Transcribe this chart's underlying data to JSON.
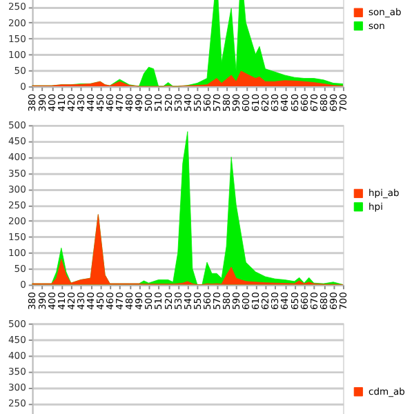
{
  "chart_data": [
    {
      "type": "area",
      "x": [
        380,
        390,
        400,
        410,
        420,
        430,
        440,
        450,
        455,
        460,
        470,
        480,
        490,
        495,
        500,
        505,
        510,
        515,
        520,
        525,
        530,
        540,
        550,
        560,
        570,
        575,
        585,
        590,
        595,
        600,
        610,
        614,
        620,
        630,
        640,
        650,
        660,
        670,
        680,
        690,
        700
      ],
      "xlim": [
        380,
        700
      ],
      "xticks": [
        380,
        390,
        400,
        410,
        420,
        430,
        440,
        450,
        460,
        470,
        480,
        490,
        500,
        510,
        520,
        530,
        540,
        550,
        560,
        570,
        580,
        590,
        600,
        610,
        620,
        630,
        640,
        650,
        660,
        670,
        680,
        690,
        700
      ],
      "ylim": [
        0,
        500
      ],
      "yticks": [
        0,
        50,
        100,
        150,
        200,
        250
      ],
      "grid": "y",
      "legend": "right",
      "series": [
        {
          "name": "son_ab",
          "color": "#ff3d00",
          "values": [
            2,
            2,
            2,
            5,
            5,
            6,
            8,
            15,
            5,
            2,
            15,
            3,
            0,
            0,
            0,
            0,
            0,
            0,
            2,
            0,
            0,
            2,
            3,
            5,
            25,
            10,
            35,
            15,
            48,
            40,
            25,
            30,
            15,
            15,
            18,
            17,
            15,
            12,
            8,
            3,
            1
          ]
        },
        {
          "name": "son",
          "color": "#00ee00",
          "values": [
            2,
            2,
            2,
            5,
            5,
            8,
            8,
            15,
            5,
            2,
            22,
            5,
            0,
            40,
            60,
            55,
            0,
            0,
            12,
            0,
            0,
            3,
            10,
            25,
            350,
            75,
            245,
            46,
            370,
            200,
            100,
            125,
            55,
            45,
            35,
            28,
            25,
            25,
            20,
            10,
            8
          ]
        }
      ]
    },
    {
      "type": "area",
      "x": [
        380,
        390,
        400,
        405,
        410,
        415,
        420,
        430,
        440,
        448,
        455,
        460,
        470,
        480,
        490,
        495,
        500,
        510,
        520,
        525,
        530,
        535,
        540,
        545,
        550,
        555,
        560,
        565,
        570,
        575,
        580,
        585,
        590,
        600,
        610,
        620,
        630,
        640,
        650,
        655,
        660,
        665,
        670,
        680,
        690,
        700
      ],
      "xlim": [
        380,
        700
      ],
      "xticks": [
        380,
        390,
        400,
        410,
        420,
        430,
        440,
        450,
        460,
        470,
        480,
        490,
        500,
        510,
        520,
        530,
        540,
        550,
        560,
        570,
        580,
        590,
        600,
        610,
        620,
        630,
        640,
        650,
        660,
        670,
        680,
        690,
        700
      ],
      "ylim": [
        0,
        500
      ],
      "yticks": [
        0,
        50,
        100,
        150,
        200,
        250,
        300,
        350,
        400,
        450,
        500
      ],
      "grid": "y",
      "legend": "right",
      "series": [
        {
          "name": "hpi_ab",
          "color": "#ff3d00",
          "values": [
            3,
            3,
            3,
            20,
            80,
            30,
            5,
            15,
            20,
            220,
            30,
            3,
            3,
            3,
            3,
            2,
            2,
            2,
            2,
            2,
            3,
            5,
            10,
            3,
            0,
            0,
            3,
            2,
            3,
            2,
            30,
            55,
            20,
            10,
            8,
            6,
            5,
            4,
            3,
            12,
            3,
            8,
            3,
            1,
            1,
            0
          ]
        },
        {
          "name": "hpi",
          "color": "#00ee00",
          "values": [
            3,
            3,
            3,
            40,
            115,
            40,
            5,
            15,
            20,
            220,
            30,
            3,
            3,
            3,
            3,
            12,
            5,
            15,
            15,
            8,
            100,
            380,
            480,
            50,
            0,
            0,
            70,
            35,
            35,
            20,
            120,
            400,
            250,
            70,
            40,
            25,
            18,
            15,
            10,
            22,
            5,
            22,
            5,
            3,
            8,
            0
          ]
        }
      ]
    },
    {
      "type": "area",
      "tick_labels": "y",
      "ylim": [
        0,
        500
      ],
      "yticks": [
        250,
        300,
        350,
        400,
        450,
        500
      ],
      "grid": "y",
      "legend": "right",
      "series": [
        {
          "name": "cdm_ab",
          "color": "#ff3d00"
        }
      ]
    }
  ]
}
